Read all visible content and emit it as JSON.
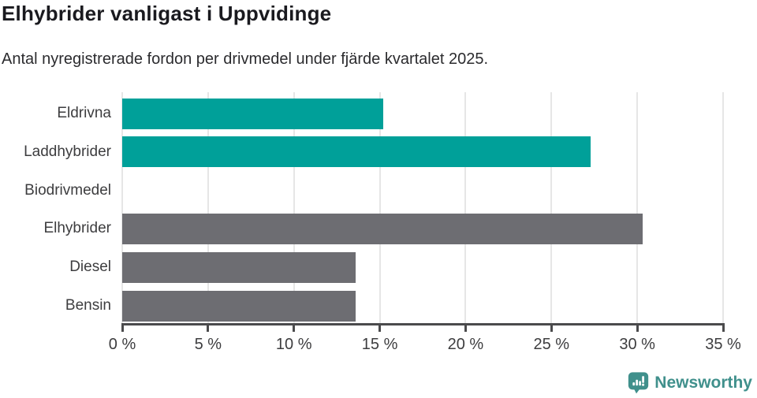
{
  "header": {
    "title": "Elhybrider vanligast i Uppvidinge",
    "subtitle": "Antal nyregistrerade fordon per drivmedel under fjärde kvartalet 2025."
  },
  "chart_data": {
    "type": "bar",
    "orientation": "horizontal",
    "categories": [
      "Eldrivna",
      "Laddhybrider",
      "Biodrivmedel",
      "Elhybrider",
      "Diesel",
      "Bensin"
    ],
    "values": [
      15.2,
      27.3,
      0,
      30.3,
      13.6,
      13.6
    ],
    "unit": "%",
    "bar_colors": [
      "#00a099",
      "#00a099",
      "#6d6d72",
      "#6d6d72",
      "#6d6d72",
      "#6d6d72"
    ],
    "title": "Elhybrider vanligast i Uppvidinge",
    "xlabel": "",
    "ylabel": "",
    "xlim": [
      0,
      35
    ],
    "x_tick_values": [
      0,
      5,
      10,
      15,
      20,
      25,
      30,
      35
    ],
    "x_tick_labels": [
      "0 %",
      "5 %",
      "10 %",
      "15 %",
      "20 %",
      "25 %",
      "30 %",
      "35 %"
    ],
    "grid": "vertical gridlines on"
  },
  "footer": {
    "brand": "Newsworthy"
  },
  "colors": {
    "highlight_bar": "#00a099",
    "default_bar": "#6d6d72",
    "grid": "#e6e6e6",
    "axis": "#4a4a4c",
    "text": "#3d3d3f",
    "brand": "#40908c"
  }
}
